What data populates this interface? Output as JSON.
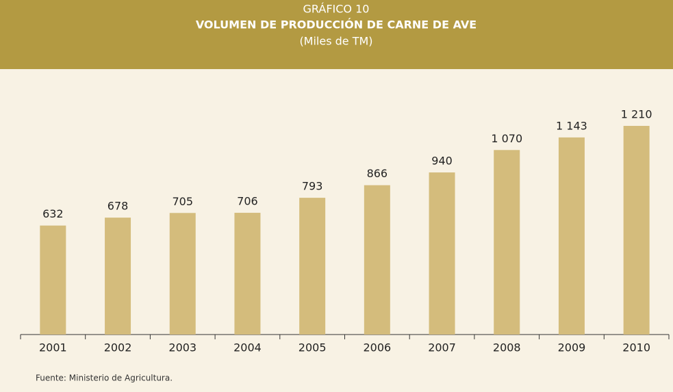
{
  "chart_data": {
    "type": "bar",
    "title": "GRÁFICO 10",
    "subtitle": "VOLUMEN DE PRODUCCIÓN DE CARNE DE AVE",
    "unit_label": "(Miles de TM)",
    "source": "Fuente: Ministerio de Agricultura.",
    "categories": [
      "2001",
      "2002",
      "2003",
      "2004",
      "2005",
      "2006",
      "2007",
      "2008",
      "2009",
      "2010"
    ],
    "values": [
      632,
      678,
      705,
      706,
      793,
      866,
      940,
      1070,
      1143,
      1210
    ],
    "value_labels": [
      "632",
      "678",
      "705",
      "706",
      "793",
      "866",
      "940",
      "1 070",
      "1 143",
      "1 210"
    ],
    "color": "#d4bc7c"
  }
}
